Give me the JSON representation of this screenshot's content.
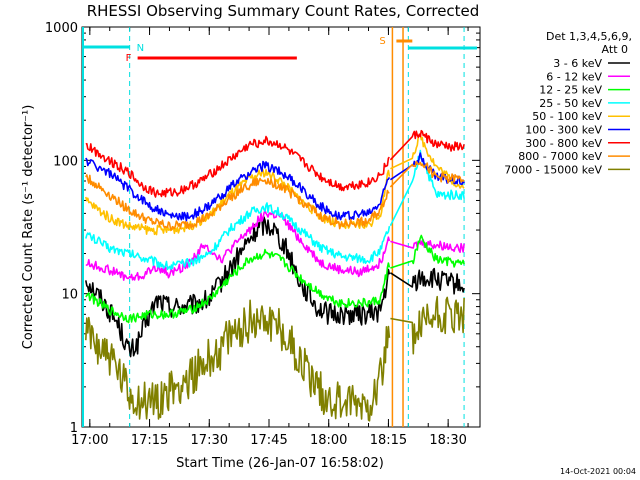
{
  "chart_data": {
    "type": "line",
    "title": "RHESSI Observing Summary Count Rates, Corrected",
    "xlabel": "Start Time (26-Jan-07 16:58:02)",
    "ylabel": "Corrected Count Rate (s⁻¹ detector⁻¹)",
    "yscale": "log",
    "ylim": [
      1,
      1000
    ],
    "xlim": [
      "16:58:02",
      "18:38"
    ],
    "x_ticks": [
      "17:00",
      "17:15",
      "17:30",
      "17:45",
      "18:00",
      "18:15",
      "18:30"
    ],
    "y_ticks": [
      "1",
      "10",
      "100",
      "1000"
    ],
    "legend_header": [
      "Det 1,3,4,5,6,9,",
      "Att 0"
    ],
    "legend_position": "right",
    "footer": "14-Oct-2021 00:04",
    "flags": [
      {
        "label": "N",
        "color": "#00e0e0"
      },
      {
        "label": "F",
        "color": "#ff0000"
      },
      {
        "label": "S",
        "color": "#ff8c00"
      }
    ],
    "series": [
      {
        "name": "3 - 6 keV",
        "color": "#000000",
        "points": [
          [
            "16:59",
            13
          ],
          [
            "17:03",
            9
          ],
          [
            "17:07",
            6
          ],
          [
            "17:10",
            3.6
          ],
          [
            "17:12",
            4.2
          ],
          [
            "17:14",
            6
          ],
          [
            "17:17",
            9
          ],
          [
            "17:20",
            8
          ],
          [
            "17:25",
            8
          ],
          [
            "17:30",
            9
          ],
          [
            "17:35",
            15
          ],
          [
            "17:40",
            25
          ],
          [
            "17:43",
            33
          ],
          [
            "17:46",
            32
          ],
          [
            "17:50",
            20
          ],
          [
            "17:53",
            12
          ],
          [
            "17:57",
            8
          ],
          [
            "18:00",
            7
          ],
          [
            "18:05",
            7
          ],
          [
            "18:10",
            7
          ],
          [
            "18:13",
            7.5
          ],
          [
            "18:15",
            13
          ],
          [
            "18:21",
            12
          ],
          [
            "18:23",
            13
          ],
          [
            "18:26",
            13
          ],
          [
            "18:30",
            12
          ],
          [
            "18:34",
            11.5
          ]
        ]
      },
      {
        "name": "6 - 12 keV",
        "color": "#ff00ff",
        "points": [
          [
            "16:59",
            17
          ],
          [
            "17:05",
            15
          ],
          [
            "17:10",
            13
          ],
          [
            "17:13",
            13.5
          ],
          [
            "17:17",
            16
          ],
          [
            "17:20",
            14
          ],
          [
            "17:25",
            17
          ],
          [
            "17:28",
            22
          ],
          [
            "17:30",
            22
          ],
          [
            "17:33",
            18
          ],
          [
            "17:40",
            30
          ],
          [
            "17:44",
            40
          ],
          [
            "17:48",
            38
          ],
          [
            "17:53",
            25
          ],
          [
            "17:58",
            17
          ],
          [
            "18:03",
            15
          ],
          [
            "18:08",
            14.5
          ],
          [
            "18:13",
            17
          ],
          [
            "18:15",
            27
          ],
          [
            "18:21",
            22
          ],
          [
            "18:23",
            24
          ],
          [
            "18:27",
            23
          ],
          [
            "18:34",
            22
          ]
        ]
      },
      {
        "name": "12 - 25 keV",
        "color": "#00ff00",
        "points": [
          [
            "16:59",
            10
          ],
          [
            "17:05",
            7.5
          ],
          [
            "17:10",
            6.5
          ],
          [
            "17:15",
            7
          ],
          [
            "17:20",
            7
          ],
          [
            "17:25",
            7.5
          ],
          [
            "17:30",
            9
          ],
          [
            "17:35",
            13
          ],
          [
            "17:40",
            18
          ],
          [
            "17:44",
            20
          ],
          [
            "17:48",
            18
          ],
          [
            "17:53",
            13
          ],
          [
            "17:58",
            10
          ],
          [
            "18:03",
            8.5
          ],
          [
            "18:10",
            8.5
          ],
          [
            "18:13",
            9
          ],
          [
            "18:15",
            16
          ],
          [
            "18:21",
            17
          ],
          [
            "18:23",
            26
          ],
          [
            "18:27",
            18
          ],
          [
            "18:34",
            16.5
          ]
        ]
      },
      {
        "name": "25 - 50 keV",
        "color": "#00ffff",
        "points": [
          [
            "16:59",
            28
          ],
          [
            "17:05",
            22
          ],
          [
            "17:10",
            20
          ],
          [
            "17:15",
            18
          ],
          [
            "17:20",
            16
          ],
          [
            "17:25",
            17
          ],
          [
            "17:30",
            20
          ],
          [
            "17:35",
            30
          ],
          [
            "17:40",
            40
          ],
          [
            "17:44",
            45
          ],
          [
            "17:48",
            40
          ],
          [
            "17:53",
            30
          ],
          [
            "17:58",
            22
          ],
          [
            "18:03",
            19
          ],
          [
            "18:10",
            18
          ],
          [
            "18:13",
            21
          ],
          [
            "18:15",
            30
          ],
          [
            "18:21",
            65
          ],
          [
            "18:23",
            115
          ],
          [
            "18:27",
            55
          ],
          [
            "18:34",
            55
          ]
        ]
      },
      {
        "name": "50 - 100 keV",
        "color": "#ffc000",
        "points": [
          [
            "16:59",
            50
          ],
          [
            "17:05",
            37
          ],
          [
            "17:10",
            32
          ],
          [
            "17:15",
            30
          ],
          [
            "17:20",
            30
          ],
          [
            "17:25",
            32
          ],
          [
            "17:30",
            38
          ],
          [
            "17:35",
            55
          ],
          [
            "17:40",
            72
          ],
          [
            "17:44",
            82
          ],
          [
            "17:48",
            70
          ],
          [
            "17:53",
            50
          ],
          [
            "17:58",
            38
          ],
          [
            "18:03",
            32
          ],
          [
            "18:10",
            33
          ],
          [
            "18:13",
            40
          ],
          [
            "18:15",
            80
          ],
          [
            "18:21",
            110
          ],
          [
            "18:23",
            150
          ],
          [
            "18:27",
            90
          ],
          [
            "18:34",
            60
          ]
        ]
      },
      {
        "name": "100 - 300 keV",
        "color": "#0000ff",
        "points": [
          [
            "16:59",
            100
          ],
          [
            "17:05",
            80
          ],
          [
            "17:10",
            60
          ],
          [
            "17:15",
            46
          ],
          [
            "17:20",
            38
          ],
          [
            "17:25",
            38
          ],
          [
            "17:30",
            45
          ],
          [
            "17:35",
            62
          ],
          [
            "17:40",
            80
          ],
          [
            "17:44",
            92
          ],
          [
            "17:48",
            82
          ],
          [
            "17:53",
            62
          ],
          [
            "17:58",
            45
          ],
          [
            "18:03",
            38
          ],
          [
            "18:10",
            40
          ],
          [
            "18:13",
            48
          ],
          [
            "18:15",
            75
          ],
          [
            "18:21",
            95
          ],
          [
            "18:23",
            105
          ],
          [
            "18:27",
            75
          ],
          [
            "18:34",
            70
          ]
        ]
      },
      {
        "name": "300 - 800 keV",
        "color": "#ff0000",
        "points": [
          [
            "16:59",
            130
          ],
          [
            "17:05",
            100
          ],
          [
            "17:10",
            80
          ],
          [
            "17:13",
            65
          ],
          [
            "17:17",
            56
          ],
          [
            "17:22",
            58
          ],
          [
            "17:28",
            70
          ],
          [
            "17:35",
            100
          ],
          [
            "17:40",
            130
          ],
          [
            "17:44",
            140
          ],
          [
            "17:48",
            130
          ],
          [
            "17:53",
            100
          ],
          [
            "17:58",
            75
          ],
          [
            "18:03",
            63
          ],
          [
            "18:10",
            68
          ],
          [
            "18:13",
            78
          ],
          [
            "18:15",
            100
          ],
          [
            "18:21",
            150
          ],
          [
            "18:23",
            160
          ],
          [
            "18:27",
            130
          ],
          [
            "18:34",
            125
          ]
        ]
      },
      {
        "name": "800 - 7000 keV",
        "color": "#ff8c00",
        "points": [
          [
            "16:59",
            75
          ],
          [
            "17:05",
            55
          ],
          [
            "17:10",
            42
          ],
          [
            "17:15",
            35
          ],
          [
            "17:20",
            32
          ],
          [
            "17:25",
            33
          ],
          [
            "17:30",
            38
          ],
          [
            "17:35",
            52
          ],
          [
            "17:40",
            65
          ],
          [
            "17:44",
            72
          ],
          [
            "17:48",
            64
          ],
          [
            "17:53",
            50
          ],
          [
            "17:58",
            38
          ],
          [
            "18:03",
            33
          ],
          [
            "18:10",
            35
          ],
          [
            "18:13",
            42
          ],
          [
            "18:15",
            60
          ],
          [
            "18:21",
            90
          ],
          [
            "18:23",
            100
          ],
          [
            "18:27",
            75
          ],
          [
            "18:34",
            72
          ]
        ]
      },
      {
        "name": "7000 - 15000 keV",
        "color": "#808000",
        "points": [
          [
            "16:59",
            5
          ],
          [
            "17:03",
            4
          ],
          [
            "17:06",
            3
          ],
          [
            "17:08",
            2.2
          ],
          [
            "17:10",
            1.7
          ],
          [
            "17:14",
            1.5
          ],
          [
            "17:18",
            1.7
          ],
          [
            "17:22",
            2
          ],
          [
            "17:26",
            2.5
          ],
          [
            "17:30",
            3.2
          ],
          [
            "17:35",
            4.5
          ],
          [
            "17:40",
            6.2
          ],
          [
            "17:44",
            6.8
          ],
          [
            "17:48",
            5.5
          ],
          [
            "17:52",
            3.5
          ],
          [
            "17:56",
            2.2
          ],
          [
            "18:00",
            1.6
          ],
          [
            "18:05",
            1.5
          ],
          [
            "18:10",
            1.5
          ],
          [
            "18:13",
            2.5
          ],
          [
            "18:15",
            5
          ],
          [
            "18:21",
            4.5
          ],
          [
            "18:23",
            5.5
          ],
          [
            "18:27",
            7
          ],
          [
            "18:34",
            6.5
          ]
        ]
      }
    ]
  }
}
